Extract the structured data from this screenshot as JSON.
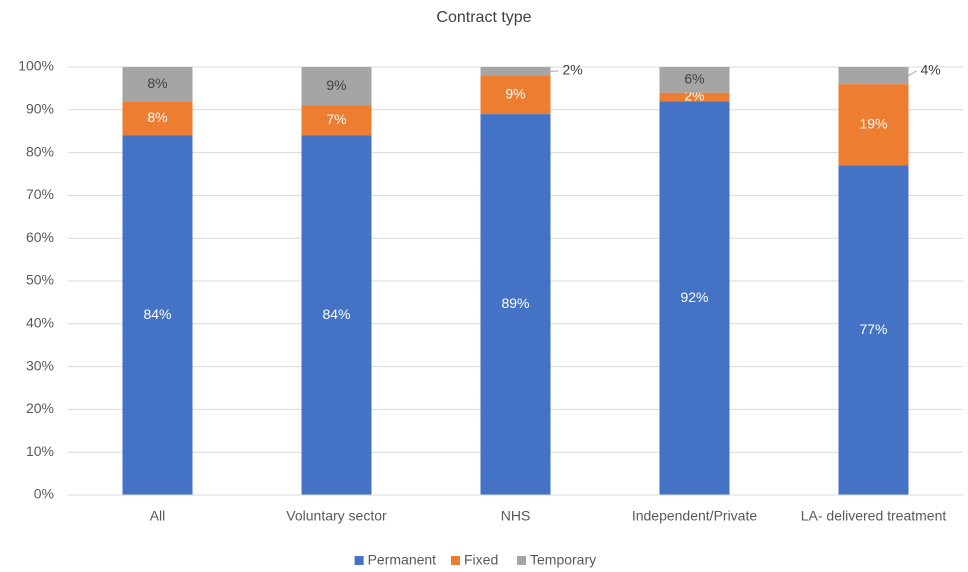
{
  "chart_data": {
    "type": "stacked_bar",
    "title": "Contract type",
    "categories": [
      "All",
      "Voluntary sector",
      "NHS",
      "Independent/Private",
      "LA- delivered treatment"
    ],
    "series": [
      {
        "name": "Permanent",
        "color": "#4472c4",
        "values": [
          84,
          84,
          89,
          92,
          77
        ],
        "value_labels": [
          "84%",
          "84%",
          "89%",
          "92%",
          "77%"
        ]
      },
      {
        "name": "Fixed",
        "color": "#ed7d31",
        "values": [
          8,
          7,
          9,
          2,
          19
        ],
        "value_labels": [
          "8%",
          "7%",
          "9%",
          "2%",
          "19%"
        ]
      },
      {
        "name": "Temporary",
        "color": "#a5a5a5",
        "values": [
          8,
          9,
          2,
          6,
          4
        ],
        "value_labels": [
          "8%",
          "9%",
          "2%",
          "6%",
          "4%"
        ]
      }
    ],
    "ylim": [
      0,
      100
    ],
    "yticks": [
      {
        "value": 0,
        "label": "0%"
      },
      {
        "value": 10,
        "label": "10%"
      },
      {
        "value": 20,
        "label": "20%"
      },
      {
        "value": 30,
        "label": "30%"
      },
      {
        "value": 40,
        "label": "40%"
      },
      {
        "value": 50,
        "label": "50%"
      },
      {
        "value": 60,
        "label": "60%"
      },
      {
        "value": 70,
        "label": "70%"
      },
      {
        "value": 80,
        "label": "80%"
      },
      {
        "value": 90,
        "label": "90%"
      },
      {
        "value": 100,
        "label": "100%"
      }
    ],
    "grid": true,
    "legend": "bottom"
  }
}
